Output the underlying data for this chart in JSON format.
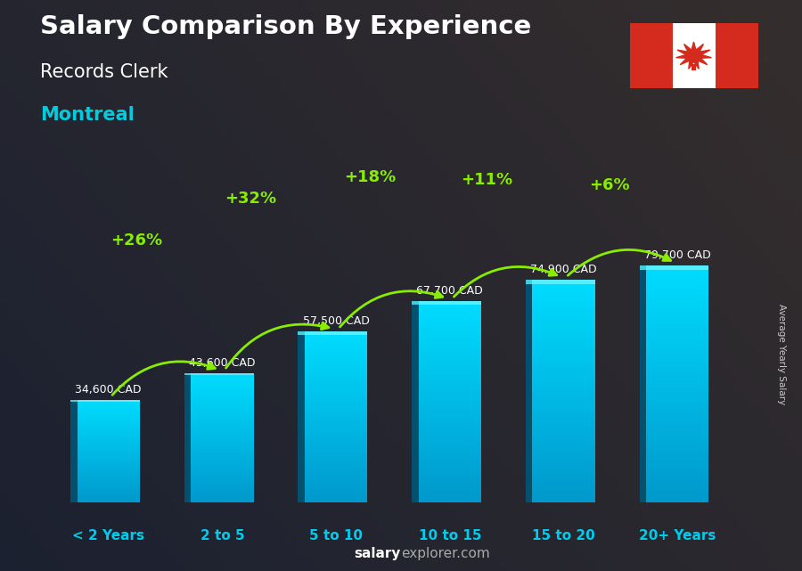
{
  "title_line1": "Salary Comparison By Experience",
  "title_line2": "Records Clerk",
  "title_line3": "Montreal",
  "categories": [
    "< 2 Years",
    "2 to 5",
    "5 to 10",
    "10 to 15",
    "15 to 20",
    "20+ Years"
  ],
  "values": [
    34600,
    43600,
    57500,
    67700,
    74900,
    79700
  ],
  "value_labels": [
    "34,600 CAD",
    "43,600 CAD",
    "57,500 CAD",
    "67,700 CAD",
    "74,900 CAD",
    "79,700 CAD"
  ],
  "pct_changes": [
    "+26%",
    "+32%",
    "+18%",
    "+11%",
    "+6%"
  ],
  "bar_color_face": "#00bbdd",
  "bar_color_left": "#007799",
  "bar_color_top": "#33ddff",
  "bg_color": "#4a4a5a",
  "overlay_color": "#000000",
  "overlay_alpha": 0.25,
  "title_color": "#ffffff",
  "subtitle_color": "#ffffff",
  "montreal_color": "#00ccdd",
  "value_color": "#ffffff",
  "pct_color": "#88ee00",
  "xlabel_color": "#00ccee",
  "footer_salary_color": "#ffffff",
  "footer_rest_color": "#aaaaaa",
  "side_label": "Average Yearly Salary",
  "side_label_color": "#cccccc",
  "ylim": [
    0,
    100000
  ],
  "bar_width": 0.55,
  "arrow_color": "#88ee00"
}
